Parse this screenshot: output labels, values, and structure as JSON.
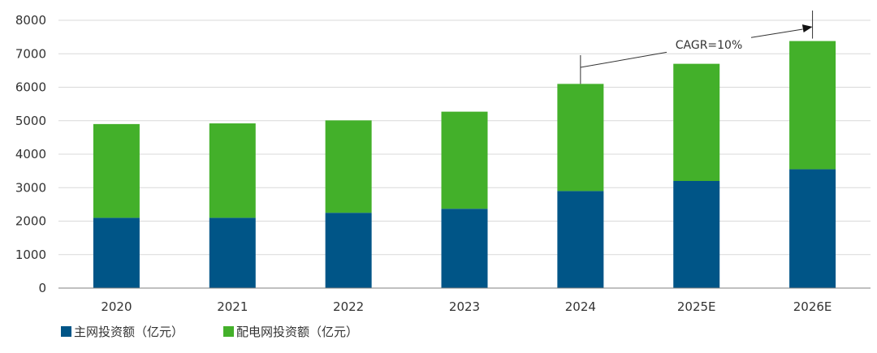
{
  "chart_data": {
    "type": "bar",
    "stacked": true,
    "categories": [
      "2020",
      "2021",
      "2022",
      "2023",
      "2024",
      "2025E",
      "2026E"
    ],
    "series": [
      {
        "name": "主网投资额（亿元）",
        "color": "#005587",
        "values": [
          2100,
          2100,
          2250,
          2370,
          2900,
          3200,
          3550
        ]
      },
      {
        "name": "配电网投资额（亿元）",
        "color": "#43B02A",
        "values": [
          2800,
          2820,
          2760,
          2900,
          3200,
          3500,
          3830
        ]
      }
    ],
    "title": "",
    "xlabel": "",
    "ylabel": "",
    "ylim": [
      0,
      8000
    ],
    "yticks": [
      0,
      1000,
      2000,
      3000,
      4000,
      5000,
      6000,
      7000,
      8000
    ],
    "grid": true,
    "legend": "bottom-left",
    "annotation": {
      "text": "CAGR=10%",
      "from": "2024",
      "to": "2026E"
    }
  }
}
